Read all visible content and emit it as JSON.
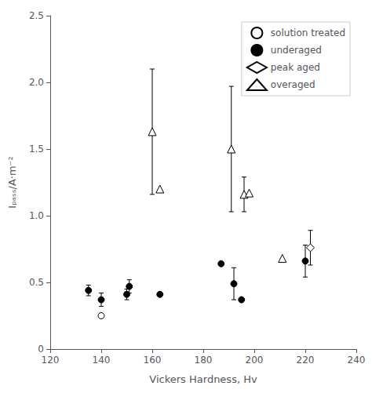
{
  "chart_data": {
    "type": "scatter",
    "xlabel": "Vickers Hardness, Hv",
    "ylabel": "Iₚₐₛₛ/A·m⁻²",
    "xlim": [
      120,
      240
    ],
    "ylim": [
      0,
      2.5
    ],
    "xticks": [
      120,
      140,
      160,
      180,
      200,
      220,
      240
    ],
    "yticks": [
      0,
      0.5,
      {
        "value": 1.0,
        "label": "1.0"
      },
      1.5,
      {
        "value": 2.0,
        "label": "2.0"
      },
      2.5
    ],
    "grid": false,
    "legend": "upper right",
    "series": [
      {
        "name": "solution treated",
        "marker": "circle",
        "color": "#ffffff",
        "x": [
          140
        ],
        "values": [
          0.25
        ],
        "yerr": [
          null
        ]
      },
      {
        "name": "underaged",
        "marker": "circle",
        "color": "#000000",
        "x": [
          135,
          140,
          150,
          151,
          163,
          187,
          192,
          195,
          220
        ],
        "values": [
          0.44,
          0.37,
          0.41,
          0.47,
          0.41,
          0.64,
          0.49,
          0.37,
          0.66
        ],
        "yerr": [
          0.04,
          0.05,
          0.04,
          0.05,
          null,
          null,
          0.12,
          null,
          0.12
        ]
      },
      {
        "name": "peak aged",
        "marker": "diamond",
        "color": "#ffffff",
        "x": [
          222
        ],
        "values": [
          0.76
        ],
        "yerr": [
          0.13
        ]
      },
      {
        "name": "overaged",
        "marker": "triangle",
        "color": "#ffffff",
        "x": [
          160,
          163,
          191,
          196,
          198,
          211
        ],
        "values": [
          1.63,
          1.2,
          1.5,
          1.16,
          1.17,
          0.68
        ],
        "yerr_low": [
          0.47,
          null,
          0.47,
          0.13,
          null,
          null
        ],
        "yerr_high": [
          0.47,
          null,
          0.47,
          0.13,
          null,
          null
        ]
      }
    ]
  }
}
